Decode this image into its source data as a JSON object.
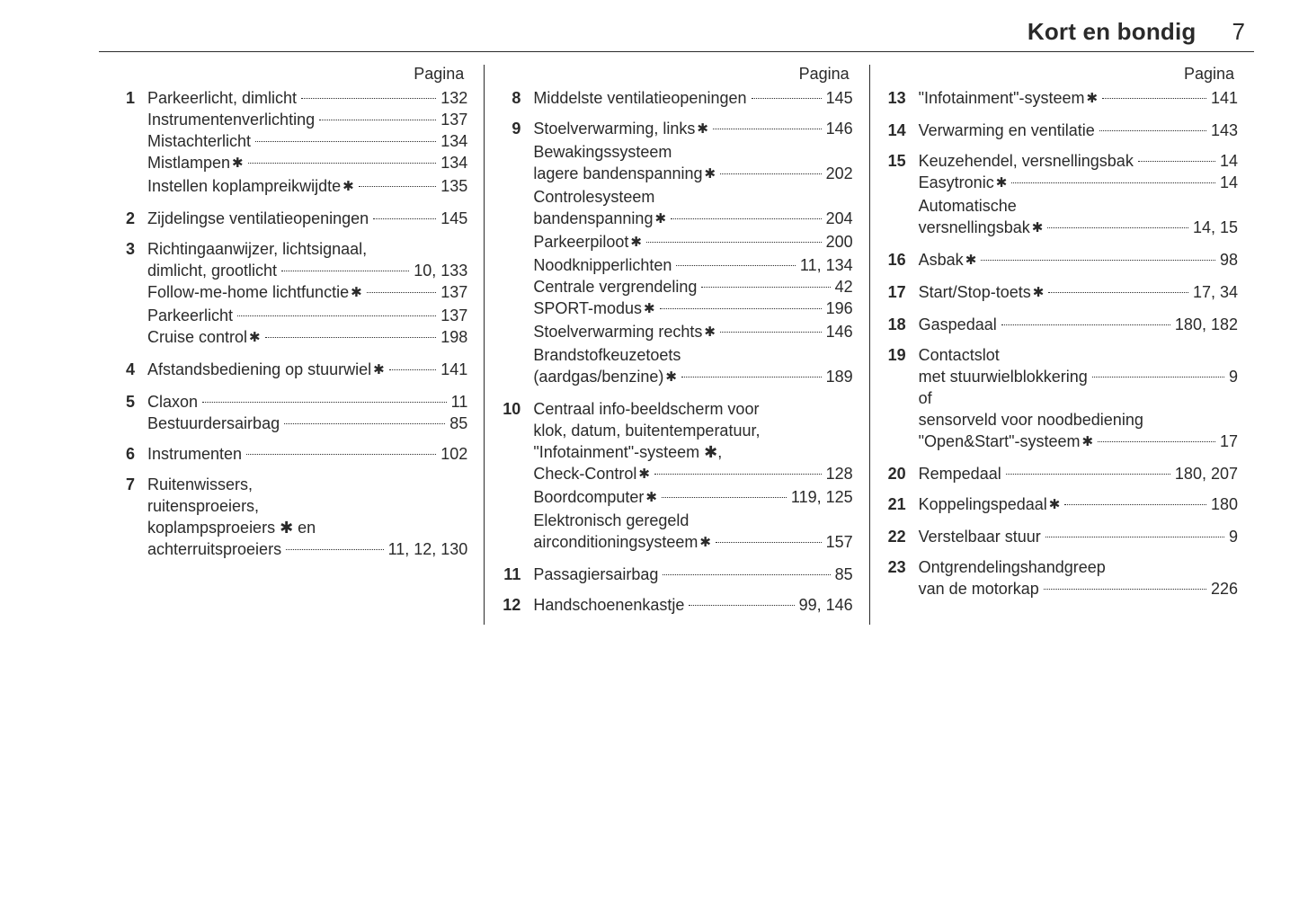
{
  "header": {
    "chapter_title": "Kort en bondig",
    "page_number": "7"
  },
  "column_label": "Pagina",
  "star_symbol": "✱",
  "colors": {
    "text": "#2a2a2a",
    "background": "#ffffff"
  },
  "columns": [
    {
      "items": [
        {
          "n": "1",
          "lines": [
            {
              "label": "Parkeerlicht, dimlicht",
              "star": false,
              "page": "132"
            },
            {
              "label": "Instrumentenverlichting",
              "star": false,
              "page": "137"
            },
            {
              "label": "Mistachterlicht",
              "star": false,
              "page": "134"
            },
            {
              "label": "Mistlampen",
              "star": true,
              "page": "134"
            },
            {
              "label": "Instellen koplampreikwijdte",
              "star": true,
              "page": "135"
            }
          ]
        },
        {
          "n": "2",
          "lines": [
            {
              "label": "Zijdelingse ventilatieopeningen",
              "star": false,
              "page": "145"
            }
          ]
        },
        {
          "n": "3",
          "lines": [
            {
              "label": "Richtingaanwijzer, lichtsignaal,",
              "star": false,
              "no_page": true
            },
            {
              "label": "dimlicht, grootlicht",
              "star": false,
              "page": "10, 133"
            },
            {
              "label": "Follow-me-home lichtfunctie",
              "star": true,
              "page": "137"
            },
            {
              "label": "Parkeerlicht",
              "star": false,
              "page": "137"
            },
            {
              "label": "Cruise control",
              "star": true,
              "page": "198"
            }
          ]
        },
        {
          "n": "4",
          "lines": [
            {
              "label": "Afstandsbediening op stuurwiel",
              "star": true,
              "page": "141"
            }
          ]
        },
        {
          "n": "5",
          "lines": [
            {
              "label": "Claxon",
              "star": false,
              "page": "11"
            },
            {
              "label": "Bestuurdersairbag",
              "star": false,
              "page": "85"
            }
          ]
        },
        {
          "n": "6",
          "lines": [
            {
              "label": "Instrumenten",
              "star": false,
              "page": "102"
            }
          ]
        },
        {
          "n": "7",
          "lines": [
            {
              "label": "Ruitenwissers,",
              "star": false,
              "no_page": true
            },
            {
              "label": "ruitensproeiers,",
              "star": false,
              "no_page": true
            },
            {
              "label": "koplampsproeiers ✱ en",
              "star": false,
              "no_page": true
            },
            {
              "label": "achterruitsproeiers",
              "star": false,
              "page": "11, 12, 130"
            }
          ]
        }
      ]
    },
    {
      "items": [
        {
          "n": "8",
          "lines": [
            {
              "label": "Middelste ventilatieopeningen",
              "star": false,
              "page": "145"
            }
          ]
        },
        {
          "n": "9",
          "lines": [
            {
              "label": "Stoelverwarming, links",
              "star": true,
              "page": "146"
            },
            {
              "label": "Bewakingssysteem",
              "star": false,
              "no_page": true
            },
            {
              "label": "lagere bandenspanning",
              "star": true,
              "page": "202"
            },
            {
              "label": "Controlesysteem",
              "star": false,
              "no_page": true
            },
            {
              "label": "bandenspanning",
              "star": true,
              "page": "204"
            },
            {
              "label": "Parkeerpiloot",
              "star": true,
              "page": "200"
            },
            {
              "label": "Noodknipperlichten",
              "star": false,
              "page": "11, 134"
            },
            {
              "label": "Centrale vergrendeling",
              "star": false,
              "page": "42"
            },
            {
              "label": "SPORT-modus",
              "star": true,
              "page": "196"
            },
            {
              "label": "Stoelverwarming rechts",
              "star": true,
              "page": "146"
            },
            {
              "label": "Brandstofkeuzetoets",
              "star": false,
              "no_page": true
            },
            {
              "label": "(aardgas/benzine)",
              "star": true,
              "page": "189"
            }
          ]
        },
        {
          "n": "10",
          "lines": [
            {
              "label": "Centraal info-beeldscherm voor",
              "star": false,
              "no_page": true
            },
            {
              "label": "klok, datum, buitentemperatuur,",
              "star": false,
              "no_page": true
            },
            {
              "label": "\"Infotainment\"-systeem ✱,",
              "star": false,
              "no_page": true
            },
            {
              "label": "Check-Control",
              "star": true,
              "page": "128"
            },
            {
              "label": "Boordcomputer",
              "star": true,
              "page": "119, 125"
            },
            {
              "label": "Elektronisch geregeld",
              "star": false,
              "no_page": true
            },
            {
              "label": "airconditioningsysteem",
              "star": true,
              "page": "157"
            }
          ]
        },
        {
          "n": "11",
          "lines": [
            {
              "label": "Passagiersairbag",
              "star": false,
              "page": "85"
            }
          ]
        },
        {
          "n": "12",
          "lines": [
            {
              "label": "Handschoenenkastje",
              "star": false,
              "page": "99, 146"
            }
          ]
        }
      ]
    },
    {
      "items": [
        {
          "n": "13",
          "lines": [
            {
              "label": "\"Infotainment\"-systeem",
              "star": true,
              "page": "141"
            }
          ]
        },
        {
          "n": "14",
          "lines": [
            {
              "label": "Verwarming en ventilatie",
              "star": false,
              "page": "143"
            }
          ]
        },
        {
          "n": "15",
          "lines": [
            {
              "label": "Keuzehendel, versnellingsbak",
              "star": false,
              "page": "14"
            },
            {
              "label": "Easytronic",
              "star": true,
              "page": "14"
            },
            {
              "label": "Automatische",
              "star": false,
              "no_page": true
            },
            {
              "label": "versnellingsbak",
              "star": true,
              "page": "14, 15"
            }
          ]
        },
        {
          "n": "16",
          "lines": [
            {
              "label": "Asbak",
              "star": true,
              "page": "98"
            }
          ]
        },
        {
          "n": "17",
          "lines": [
            {
              "label": "Start/Stop-toets",
              "star": true,
              "page": "17, 34"
            }
          ]
        },
        {
          "n": "18",
          "lines": [
            {
              "label": "Gaspedaal",
              "star": false,
              "page": "180, 182"
            }
          ]
        },
        {
          "n": "19",
          "lines": [
            {
              "label": "Contactslot",
              "star": false,
              "no_page": true
            },
            {
              "label": "met stuurwielblokkering",
              "star": false,
              "page": "9"
            },
            {
              "label": "of",
              "star": false,
              "no_page": true
            },
            {
              "label": "sensorveld voor noodbediening",
              "star": false,
              "no_page": true
            },
            {
              "label": "\"Open&Start\"-systeem",
              "star": true,
              "page": "17"
            }
          ]
        },
        {
          "n": "20",
          "lines": [
            {
              "label": "Rempedaal",
              "star": false,
              "page": "180, 207"
            }
          ]
        },
        {
          "n": "21",
          "lines": [
            {
              "label": "Koppelingspedaal",
              "star": true,
              "page": "180"
            }
          ]
        },
        {
          "n": "22",
          "lines": [
            {
              "label": "Verstelbaar stuur",
              "star": false,
              "page": "9"
            }
          ]
        },
        {
          "n": "23",
          "lines": [
            {
              "label": "Ontgrendelingshandgreep",
              "star": false,
              "no_page": true
            },
            {
              "label": "van de motorkap",
              "star": false,
              "page": "226"
            }
          ]
        }
      ]
    }
  ]
}
